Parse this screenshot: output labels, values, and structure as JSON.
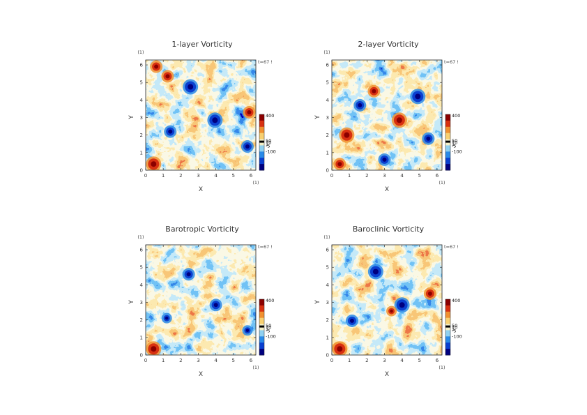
{
  "chart_data": [
    {
      "type": "heatmap",
      "title": "1-layer Vorticity",
      "xlabel": "X",
      "ylabel": "Y",
      "xlim": [
        0,
        6.28
      ],
      "ylim": [
        0,
        6.28
      ],
      "x_ticks": [
        "0",
        "1",
        "2",
        "3",
        "4",
        "5",
        "6"
      ],
      "y_ticks": [
        "0",
        "1",
        "2",
        "3",
        "4",
        "5",
        "6"
      ],
      "unit_label_x": "(1)",
      "unit_label_y": "(1)",
      "time_label": "t=67 !",
      "colorbar_labels": [
        "400",
        "50",
        "10",
        "1",
        "-5",
        "-100"
      ],
      "colormap": [
        "#00007f",
        "#0a3fd0",
        "#2a8ae8",
        "#8fd0f0",
        "#f4f0c8",
        "#f8d070",
        "#f09030",
        "#d83010",
        "#8b0000"
      ],
      "features": [
        {
          "x": 3.95,
          "y": 2.85,
          "sign": "negative",
          "strength": "strong"
        },
        {
          "x": 2.55,
          "y": 4.75,
          "sign": "negative",
          "strength": "strong"
        },
        {
          "x": 0.45,
          "y": 0.35,
          "sign": "positive",
          "strength": "strong"
        },
        {
          "x": 5.8,
          "y": 1.35,
          "sign": "negative",
          "strength": "medium"
        },
        {
          "x": 1.25,
          "y": 5.35,
          "sign": "positive",
          "strength": "medium"
        },
        {
          "x": 0.6,
          "y": 5.9,
          "sign": "positive",
          "strength": "medium"
        },
        {
          "x": 1.4,
          "y": 2.2,
          "sign": "negative",
          "strength": "medium"
        },
        {
          "x": 5.9,
          "y": 3.3,
          "sign": "positive",
          "strength": "medium"
        }
      ]
    },
    {
      "type": "heatmap",
      "title": "2-layer Vorticity",
      "xlabel": "X",
      "ylabel": "Y",
      "xlim": [
        0,
        6.28
      ],
      "ylim": [
        0,
        6.28
      ],
      "x_ticks": [
        "0",
        "1",
        "2",
        "3",
        "4",
        "5",
        "6"
      ],
      "y_ticks": [
        "0",
        "1",
        "2",
        "3",
        "4",
        "5",
        "6"
      ],
      "unit_label_x": "(1)",
      "unit_label_y": "(1)",
      "time_label": "t=67 !",
      "colorbar_labels": [
        "400",
        "50",
        "10",
        "1",
        "-5",
        "-100"
      ],
      "colormap": [
        "#00007f",
        "#0a3fd0",
        "#2a8ae8",
        "#8fd0f0",
        "#f4f0c8",
        "#f8d070",
        "#f09030",
        "#d83010",
        "#8b0000"
      ],
      "features": [
        {
          "x": 3.85,
          "y": 2.85,
          "sign": "positive",
          "strength": "strong"
        },
        {
          "x": 0.85,
          "y": 2.0,
          "sign": "positive",
          "strength": "strong"
        },
        {
          "x": 0.45,
          "y": 0.35,
          "sign": "positive",
          "strength": "medium"
        },
        {
          "x": 2.4,
          "y": 4.5,
          "sign": "positive",
          "strength": "medium"
        },
        {
          "x": 4.9,
          "y": 4.2,
          "sign": "negative",
          "strength": "strong"
        },
        {
          "x": 1.6,
          "y": 3.7,
          "sign": "negative",
          "strength": "medium"
        },
        {
          "x": 5.5,
          "y": 1.8,
          "sign": "negative",
          "strength": "medium"
        },
        {
          "x": 3.0,
          "y": 0.6,
          "sign": "negative",
          "strength": "medium"
        }
      ]
    },
    {
      "type": "heatmap",
      "title": "Barotropic Vorticity",
      "xlabel": "X",
      "ylabel": "Y",
      "xlim": [
        0,
        6.28
      ],
      "ylim": [
        0,
        6.28
      ],
      "x_ticks": [
        "0",
        "1",
        "2",
        "3",
        "4",
        "5",
        "6"
      ],
      "y_ticks": [
        "0",
        "1",
        "2",
        "3",
        "4",
        "5",
        "6"
      ],
      "unit_label_x": "(1)",
      "unit_label_y": "(1)",
      "time_label": "t=67 !",
      "colorbar_labels": [
        "400",
        "50",
        "10",
        "1",
        "-5",
        "-100"
      ],
      "colormap": [
        "#00007f",
        "#0a3fd0",
        "#2a8ae8",
        "#8fd0f0",
        "#f4f0c8",
        "#f8d070",
        "#f09030",
        "#d83010",
        "#8b0000"
      ],
      "features": [
        {
          "x": 4.0,
          "y": 2.85,
          "sign": "negative",
          "strength": "medium"
        },
        {
          "x": 2.45,
          "y": 4.6,
          "sign": "negative",
          "strength": "medium"
        },
        {
          "x": 0.45,
          "y": 0.35,
          "sign": "positive",
          "strength": "strong"
        },
        {
          "x": 5.8,
          "y": 1.4,
          "sign": "negative",
          "strength": "weak"
        },
        {
          "x": 1.2,
          "y": 2.1,
          "sign": "negative",
          "strength": "weak"
        }
      ]
    },
    {
      "type": "heatmap",
      "title": "Baroclinic Vorticity",
      "xlabel": "X",
      "ylabel": "Y",
      "xlim": [
        0,
        6.28
      ],
      "ylim": [
        0,
        6.28
      ],
      "x_ticks": [
        "0",
        "1",
        "2",
        "3",
        "4",
        "5",
        "6"
      ],
      "y_ticks": [
        "0",
        "1",
        "2",
        "3",
        "4",
        "5",
        "6"
      ],
      "unit_label_x": "(1)",
      "unit_label_y": "(1)",
      "time_label": "t=67 !",
      "colorbar_labels": [
        "400",
        "50",
        "10",
        "1",
        "-5",
        "-100"
      ],
      "colormap": [
        "#00007f",
        "#0a3fd0",
        "#2a8ae8",
        "#8fd0f0",
        "#f4f0c8",
        "#f8d070",
        "#f09030",
        "#d83010",
        "#8b0000"
      ],
      "features": [
        {
          "x": 4.0,
          "y": 2.85,
          "sign": "negative",
          "strength": "strong"
        },
        {
          "x": 2.5,
          "y": 4.75,
          "sign": "negative",
          "strength": "strong"
        },
        {
          "x": 0.45,
          "y": 0.35,
          "sign": "positive",
          "strength": "strong"
        },
        {
          "x": 1.15,
          "y": 1.95,
          "sign": "negative",
          "strength": "medium"
        },
        {
          "x": 5.6,
          "y": 3.5,
          "sign": "positive",
          "strength": "medium"
        },
        {
          "x": 3.4,
          "y": 2.5,
          "sign": "positive",
          "strength": "weak"
        }
      ]
    }
  ]
}
